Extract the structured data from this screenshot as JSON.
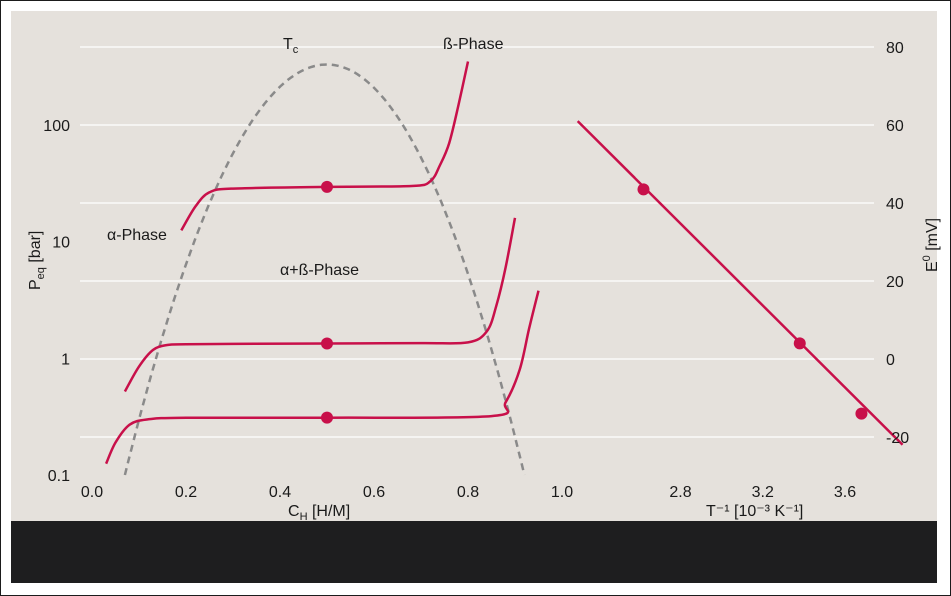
{
  "colors": {
    "curve": "#c8104a",
    "dome": "#8a8a8a",
    "grid": "#ffffff",
    "panel": "#e5e1dc",
    "footer": "#1e1e1f"
  },
  "chart_data": [
    {
      "type": "line",
      "x_label_main": "C",
      "x_label_sub": "H",
      "x_label_rest": " [H/M]",
      "y_label_main": "P",
      "y_label_sub": "eq",
      "y_label_rest": " [bar]",
      "y_scale": "log",
      "xlim": [
        -0.02,
        1.0
      ],
      "ylim": [
        0.1,
        400
      ],
      "x_ticks": [
        "0.0",
        "0.2",
        "0.4",
        "0.6",
        "0.8",
        "1.0"
      ],
      "y_ticks": [
        "0.1",
        "1",
        "10",
        "100"
      ],
      "grid": "horizontal",
      "annotations": {
        "alpha": "α-Phase",
        "beta": "ß-Phase",
        "mixed": "α+ß-Phase",
        "tc_main": "T",
        "tc_sub": "c"
      },
      "series": [
        {
          "x": [
            0.07,
            0.1,
            0.13,
            0.16,
            0.2,
            0.3,
            0.5,
            0.7,
            0.8,
            0.84,
            0.86,
            0.88,
            0.9
          ],
          "y": [
            0.52,
            0.85,
            1.18,
            1.3,
            1.32,
            1.33,
            1.34,
            1.35,
            1.37,
            1.7,
            2.8,
            6.0,
            16.0
          ]
        },
        {
          "x": [
            0.03,
            0.05,
            0.08,
            0.12,
            0.2,
            0.5,
            0.85,
            0.88,
            0.91,
            0.93,
            0.95
          ],
          "y": [
            0.125,
            0.19,
            0.27,
            0.3,
            0.31,
            0.31,
            0.32,
            0.42,
            0.8,
            1.8,
            3.8
          ]
        },
        {
          "x": [
            0.19,
            0.22,
            0.25,
            0.3,
            0.5,
            0.68,
            0.72,
            0.74,
            0.76,
            0.78,
            0.8
          ],
          "y": [
            12.5,
            20.0,
            26.5,
            28.5,
            29.5,
            30.0,
            33.0,
            45.0,
            70.0,
            150.0,
            350.0
          ]
        }
      ],
      "points": [
        {
          "x": 0.5,
          "y": 29.5
        },
        {
          "x": 0.5,
          "y": 1.34
        },
        {
          "x": 0.5,
          "y": 0.31
        }
      ],
      "dome": {
        "x_left": 0.07,
        "x_peak": 0.5,
        "x_right": 0.92,
        "y_peak": 330,
        "y_base": 0.1
      }
    },
    {
      "type": "scatter",
      "x_label": "T⁻¹ [10⁻³ K⁻¹]",
      "y_label_main": "E",
      "y_label_sup": "0",
      "y_label_rest": " [mV]",
      "ylim": [
        -30,
        80
      ],
      "xlim": [
        2.2,
        3.9
      ],
      "x_ticks": [
        "2.8",
        "3.2",
        "3.6"
      ],
      "y_ticks": [
        "80",
        "60",
        "40",
        "20",
        "0",
        "-20"
      ],
      "line": {
        "x": [
          2.3,
          3.88
        ],
        "y": [
          61,
          -22
        ]
      },
      "points": [
        {
          "x": 2.62,
          "y": 43.5
        },
        {
          "x": 3.38,
          "y": 4.0
        },
        {
          "x": 3.68,
          "y": -14.0
        }
      ]
    }
  ]
}
